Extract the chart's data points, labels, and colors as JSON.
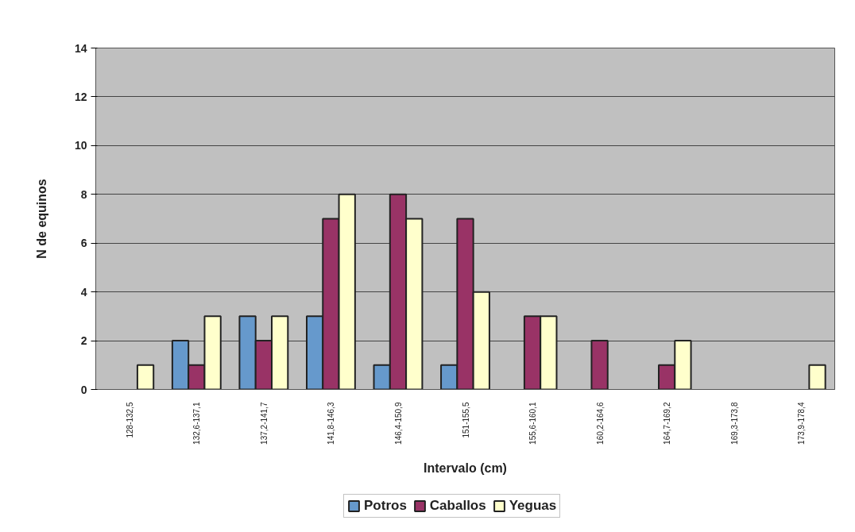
{
  "chart_data": {
    "type": "bar",
    "xlabel": "Intervalo (cm)",
    "ylabel": "N de equinos",
    "categories": [
      "128-132,5",
      "132,6-137,1",
      "137,2-141,7",
      "141,8-146,3",
      "146,4-150,9",
      "151-155,5",
      "155,6-160,1",
      "160,2-164,6",
      "164,7-169,2",
      "169,3-173,8",
      "173,9-178,4"
    ],
    "series": [
      {
        "name": "Potros",
        "color": "#6699cc",
        "values": [
          null,
          2,
          3,
          3,
          1,
          1,
          null,
          null,
          null,
          null,
          null
        ]
      },
      {
        "name": "Caballos",
        "color": "#993366",
        "values": [
          null,
          1,
          2,
          7,
          8,
          7,
          3,
          2,
          1,
          null,
          null
        ]
      },
      {
        "name": "Yeguas",
        "color": "#ffffcc",
        "values": [
          1,
          3,
          3,
          8,
          7,
          4,
          3,
          null,
          2,
          null,
          1
        ]
      }
    ],
    "ylim": [
      0,
      14
    ],
    "yticks": [
      0,
      2,
      4,
      6,
      8,
      10,
      12,
      14
    ],
    "grid": "y",
    "legend": "bottom"
  }
}
